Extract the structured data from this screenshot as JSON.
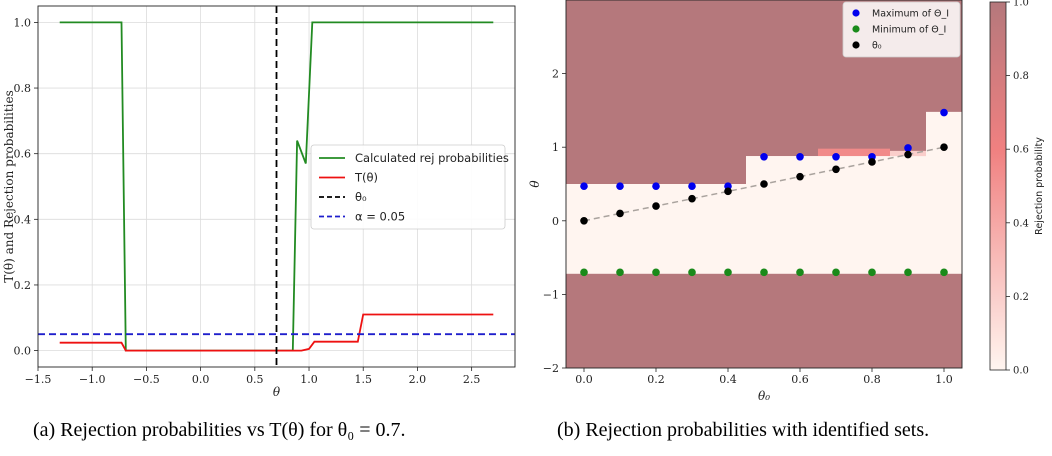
{
  "captions": {
    "a": "(a) Rejection probabilities vs T(θ) for θ₀ = 0.7.",
    "b": "(b) Rejection probabilities with identified sets."
  },
  "chart_data": [
    {
      "type": "line",
      "xlabel": "θ",
      "ylabel": "T(θ) and Rejection probabilities",
      "xlim": [
        -1.5,
        2.9
      ],
      "ylim": [
        -0.05,
        1.05
      ],
      "xticks": [
        -1.5,
        -1.0,
        -0.5,
        0.0,
        0.5,
        1.0,
        1.5,
        2.0,
        2.5
      ],
      "xtick_labels": [
        "−1.5",
        "−1.0",
        "−0.5",
        "0.0",
        "0.5",
        "1.0",
        "1.5",
        "2.0",
        "2.5"
      ],
      "yticks": [
        0.0,
        0.2,
        0.4,
        0.6,
        0.8,
        1.0
      ],
      "ytick_labels": [
        "0.0",
        "0.2",
        "0.4",
        "0.6",
        "0.8",
        "1.0"
      ],
      "grid": true,
      "legend_position": "center-right",
      "series": [
        {
          "name": "Calculated rej probabilities",
          "color": "#228b22",
          "style": "solid",
          "x": [
            -1.3,
            -0.73,
            -0.69,
            0.85,
            0.89,
            0.97,
            1.03,
            2.7
          ],
          "y": [
            1.0,
            1.0,
            0.0,
            0.0,
            0.64,
            0.57,
            1.0,
            1.0
          ]
        },
        {
          "name": "T(θ)",
          "color": "#ee1111",
          "style": "solid",
          "x": [
            -1.3,
            -0.73,
            -0.69,
            0.93,
            1.0,
            1.05,
            1.45,
            1.5,
            2.7
          ],
          "y": [
            0.024,
            0.024,
            0.0,
            0.0,
            0.005,
            0.027,
            0.027,
            0.11,
            0.11
          ]
        },
        {
          "name": "θ₀",
          "color": "#000000",
          "style": "dashed",
          "type": "vline",
          "x": 0.7
        },
        {
          "name": "α = 0.05",
          "color": "#1f1fcc",
          "style": "dashed",
          "type": "hline",
          "y": 0.05
        }
      ]
    },
    {
      "type": "heatmap",
      "xlabel": "θ₀",
      "ylabel": "θ",
      "colorbar_label": "Rejection probability",
      "xlim": [
        -0.05,
        1.05
      ],
      "ylim": [
        -2,
        3
      ],
      "xticks": [
        0.0,
        0.2,
        0.4,
        0.6,
        0.8,
        1.0
      ],
      "xtick_labels": [
        "0.0",
        "0.2",
        "0.4",
        "0.6",
        "0.8",
        "1.0"
      ],
      "yticks": [
        -2,
        -1,
        0,
        1,
        2
      ],
      "ytick_labels": [
        "−2",
        "−1",
        "0",
        "1",
        "2"
      ],
      "colorbar_ticks": [
        0.0,
        0.2,
        0.4,
        0.6,
        0.8,
        1.0
      ],
      "colorbar_tick_labels": [
        "0.0",
        "0.2",
        "0.4",
        "0.6",
        "0.8",
        "1.0"
      ],
      "background_value": 1.0,
      "regions": [
        {
          "x": [
            -0.05,
            0.45
          ],
          "y": [
            -0.72,
            0.5
          ],
          "value": 0.0
        },
        {
          "x": [
            0.45,
            0.95
          ],
          "y": [
            -0.72,
            0.88
          ],
          "value": 0.0
        },
        {
          "x": [
            0.95,
            1.05
          ],
          "y": [
            -0.72,
            1.48
          ],
          "value": 0.0
        },
        {
          "x": [
            0.65,
            0.85
          ],
          "y": [
            0.88,
            0.98
          ],
          "value": 0.55
        },
        {
          "x": [
            0.85,
            0.95
          ],
          "y": [
            0.88,
            0.95
          ],
          "value": 0.2
        }
      ],
      "legend_position": "top-right",
      "series": [
        {
          "name": "Maximum of Θ_I",
          "color": "#0000ee",
          "x": [
            0.0,
            0.1,
            0.2,
            0.3,
            0.4,
            0.5,
            0.6,
            0.7,
            0.8,
            0.9,
            1.0
          ],
          "y": [
            0.47,
            0.47,
            0.47,
            0.47,
            0.47,
            0.87,
            0.87,
            0.87,
            0.87,
            0.99,
            1.47
          ]
        },
        {
          "name": "Minimum of Θ_I",
          "color": "#1a8a1a",
          "x": [
            0.0,
            0.1,
            0.2,
            0.3,
            0.4,
            0.5,
            0.6,
            0.7,
            0.8,
            0.9,
            1.0
          ],
          "y": [
            -0.7,
            -0.7,
            -0.7,
            -0.7,
            -0.7,
            -0.7,
            -0.7,
            -0.7,
            -0.7,
            -0.7,
            -0.7
          ]
        },
        {
          "name": "θ₀",
          "color": "#000000",
          "x": [
            0.0,
            0.1,
            0.2,
            0.3,
            0.4,
            0.5,
            0.6,
            0.7,
            0.8,
            0.9,
            1.0
          ],
          "y": [
            0.0,
            0.1,
            0.2,
            0.3,
            0.4,
            0.5,
            0.6,
            0.7,
            0.8,
            0.9,
            1.0
          ]
        }
      ]
    }
  ]
}
